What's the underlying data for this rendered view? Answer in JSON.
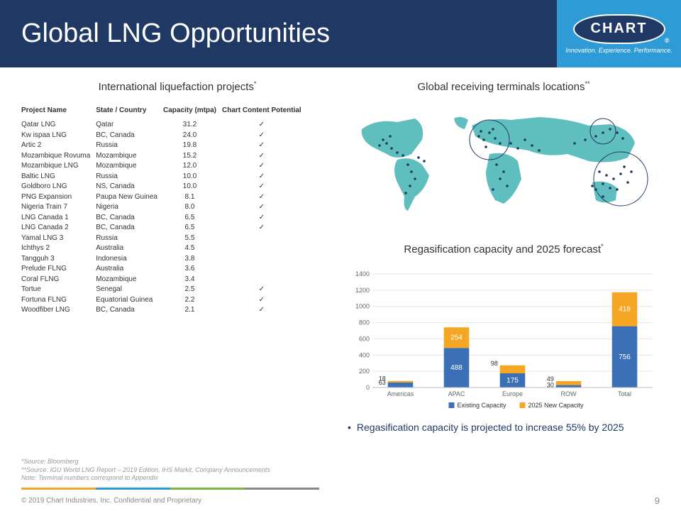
{
  "header": {
    "title": "Global LNG Opportunities",
    "logo_text": "CHART",
    "tagline": "Innovation. Experience. Performance."
  },
  "left": {
    "section_title": "International liquefaction projects",
    "section_sup": "*",
    "columns": [
      "Project Name",
      "State / Country",
      "Capacity (mtpa)",
      "Chart Content Potential"
    ],
    "rows": [
      [
        "Qatar LNG",
        "Qatar",
        "31.2",
        true
      ],
      [
        "Kw ispaa LNG",
        "BC, Canada",
        "24.0",
        true
      ],
      [
        "Artic 2",
        "Russia",
        "19.8",
        true
      ],
      [
        "Mozambique Rovuma",
        "Mozambique",
        "15.2",
        true
      ],
      [
        "Mozambique LNG",
        "Mozambique",
        "12.0",
        true
      ],
      [
        "Baltic LNG",
        "Russia",
        "10.0",
        true
      ],
      [
        "Goldboro LNG",
        "NS, Canada",
        "10.0",
        true
      ],
      [
        "PNG Expansion",
        "Paupa New Guinea",
        "8.1",
        true
      ],
      [
        "Nigeria Train 7",
        "Nigeria",
        "8.0",
        true
      ],
      [
        "LNG Canada 1",
        "BC, Canada",
        "6.5",
        true
      ],
      [
        "LNG Canada 2",
        "BC, Canada",
        "6.5",
        true
      ],
      [
        "Yamal LNG 3",
        "Russia",
        "5.5",
        false
      ],
      [
        "Ichthys 2",
        "Australia",
        "4.5",
        false
      ],
      [
        "Tangguh 3",
        "Indonesia",
        "3.8",
        false
      ],
      [
        "Prelude FLNG",
        "Australia",
        "3.6",
        false
      ],
      [
        "Coral FLNG",
        "Mozambique",
        "3.4",
        false
      ],
      [
        "Tortue",
        "Senegal",
        "2.5",
        true
      ],
      [
        "Fortuna FLNG",
        "Equatorial Guinea",
        "2.2",
        true
      ],
      [
        "Woodfiber LNG",
        "BC, Canada",
        "2.1",
        true
      ]
    ]
  },
  "right": {
    "map_title": "Global receiving terminals locations",
    "map_sup": "**",
    "map_colors": {
      "land": "#5fbfbf",
      "dot": "#1f3864",
      "circle": "#1f3864"
    },
    "chart_title": "Regasification capacity and 2025 forecast",
    "chart_sup": "*",
    "chart": {
      "type": "stacked-bar",
      "categories": [
        "Americas",
        "APAC",
        "Europe",
        "ROW",
        "Total"
      ],
      "existing": [
        63,
        488,
        175,
        30,
        756
      ],
      "new2025": [
        18,
        254,
        98,
        49,
        418
      ],
      "colors": {
        "existing": "#3b6fb6",
        "new": "#f5a623"
      },
      "ylim": [
        0,
        1400
      ],
      "ytick_step": 200,
      "legend": [
        "Existing Capacity",
        "2025 New Capacity"
      ],
      "grid_color": "#e6e6e6",
      "axis_color": "#bdbdbd",
      "label_fontsize": 9
    },
    "bullet": "Regasification capacity is projected to increase 55% by 2025"
  },
  "footnotes": [
    "*Source: Bloomberg",
    "**Source: IGU World LNG Report – 2019 Edition, IHS Markit, Company Announcements",
    "Note: Terminal numbers correspond to Appendix"
  ],
  "footer": {
    "copyright": "© 2019 Chart Industries, Inc. Confidential and Proprietary",
    "page": "9"
  }
}
